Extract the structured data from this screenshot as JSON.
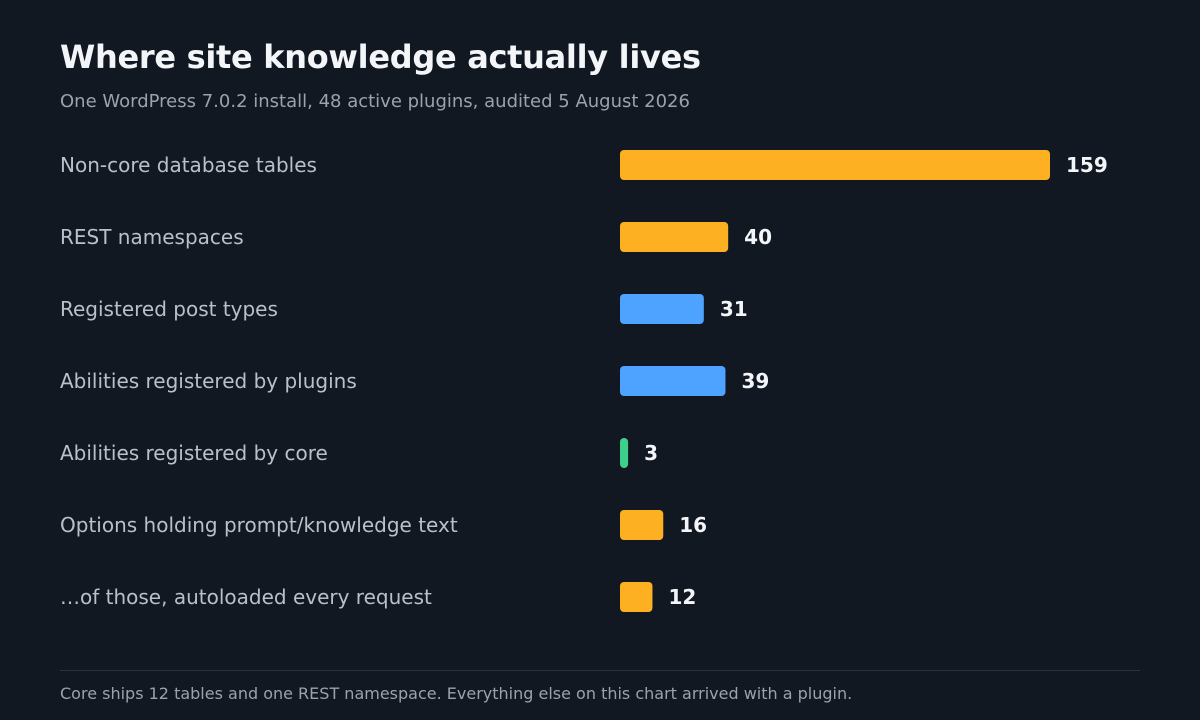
{
  "chart_data": {
    "type": "bar",
    "orientation": "horizontal",
    "title": "Where site knowledge actually lives",
    "subtitle": "One WordPress 7.0.2 install, 48 active plugins, audited 5 August 2026",
    "categories": [
      "Non-core database tables",
      "REST namespaces",
      "Registered post types",
      "Abilities registered by plugins",
      "Abilities registered by core",
      "Options holding prompt/knowledge text",
      "…of those, autoloaded every request"
    ],
    "values": [
      159,
      40,
      31,
      39,
      3,
      16,
      12
    ],
    "bar_colors": [
      "#fdb022",
      "#fdb022",
      "#4da3ff",
      "#4da3ff",
      "#3ecf8e",
      "#fdb022",
      "#fdb022"
    ],
    "xlim": [
      0,
      159
    ],
    "grid": false,
    "legend": "none",
    "data_labels": "end of bar"
  },
  "footnote": "Core ships 12 tables and one REST namespace. Everything else on this chart arrived with a plugin.",
  "colors": {
    "background": "#111822",
    "title": "#f3f5f8",
    "muted_text": "#9aa3ad",
    "row_label": "#b9c0c8",
    "divider": "#2a323c"
  }
}
